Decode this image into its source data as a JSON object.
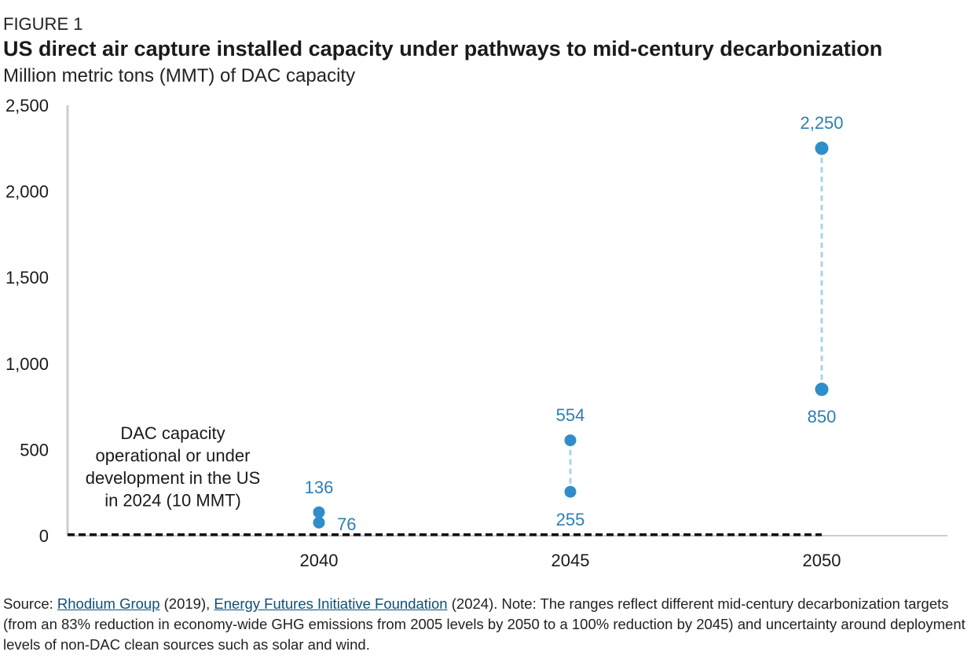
{
  "figure_label": "FIGURE 1",
  "title": "US direct air capture installed capacity under pathways to mid-century decarbonization",
  "subtitle": "Million metric tons (MMT) of DAC capacity",
  "chart_data": {
    "type": "scatter",
    "categories": [
      "2040",
      "2045",
      "2050"
    ],
    "series": [
      {
        "values": [
          136,
          554,
          2250
        ]
      },
      {
        "values": [
          76,
          255,
          850
        ]
      }
    ],
    "data_labels": {
      "high": [
        "136",
        "554",
        "2,250"
      ],
      "low": [
        "76",
        "255",
        "850"
      ]
    },
    "ylim": [
      0,
      2500
    ],
    "yticks": [
      0,
      500,
      1000,
      1500,
      2000,
      2500
    ],
    "ytick_labels": [
      "0",
      "500",
      "1,000",
      "1,500",
      "2,000",
      "2,500"
    ],
    "reference_line": {
      "value": 10,
      "label": [
        "DAC capacity",
        "operational or under",
        "development in the US",
        "in 2024 (10 MMT)"
      ]
    },
    "grid": false,
    "colors": {
      "point": "#2f8ec9",
      "range_line": "#a9d3e8",
      "label": "#2d7fb0",
      "reference": "#111111",
      "axis": "#cccccc"
    }
  },
  "footer": {
    "prefix": "Source: ",
    "link1": "Rhodium Group",
    "mid1": " (2019), ",
    "link2": "Energy Futures Initiative Foundation",
    "rest": " (2024). Note: The ranges reflect different mid-century decarbonization targets (from an 83% reduction in economy-wide GHG emissions from 2005 levels by 2050 to a 100% reduction by 2045) and uncertainty around deployment levels of non-DAC clean sources such as solar and wind."
  }
}
